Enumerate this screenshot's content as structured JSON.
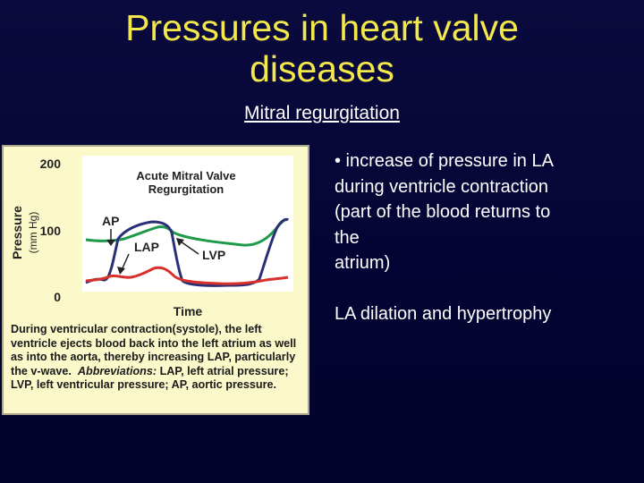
{
  "slide": {
    "title": "Pressures in heart valve diseases",
    "subtitle": "Mitral regurgitation"
  },
  "figure": {
    "title_lines": [
      "Acute Mitral Valve",
      "Regurgitation"
    ],
    "y_axis_label": "Pressure",
    "y_axis_units": "(mm Hg)",
    "y_ticks": [
      "200",
      "100",
      "0"
    ],
    "x_axis_label": "Time",
    "labels": {
      "ap": "AP",
      "lap": "LAP",
      "lvp": "LVP"
    },
    "colors": {
      "ap": "#1e9a4a",
      "lap": "#d8302a",
      "lvp": "#2a2f78",
      "panel_bg": "#fbf8c9"
    },
    "caption": {
      "text": "During ventricular contraction(systole), the left ventricle ejects blood back into the left atrium as well as into the aorta, thereby increasing LAP, particularly the v-wave.",
      "abbr_heading": "Abbreviations:",
      "abbr_text": "LAP, left atrial pressure; LVP, left ventricular pressure; AP, aortic pressure."
    }
  },
  "bullets": {
    "lines": [
      "• increase of pressure in LA",
      "during ventricle contraction",
      "(part of the blood returns to",
      "the",
      "atrium)"
    ],
    "second": "LA dilation and hypertrophy"
  }
}
